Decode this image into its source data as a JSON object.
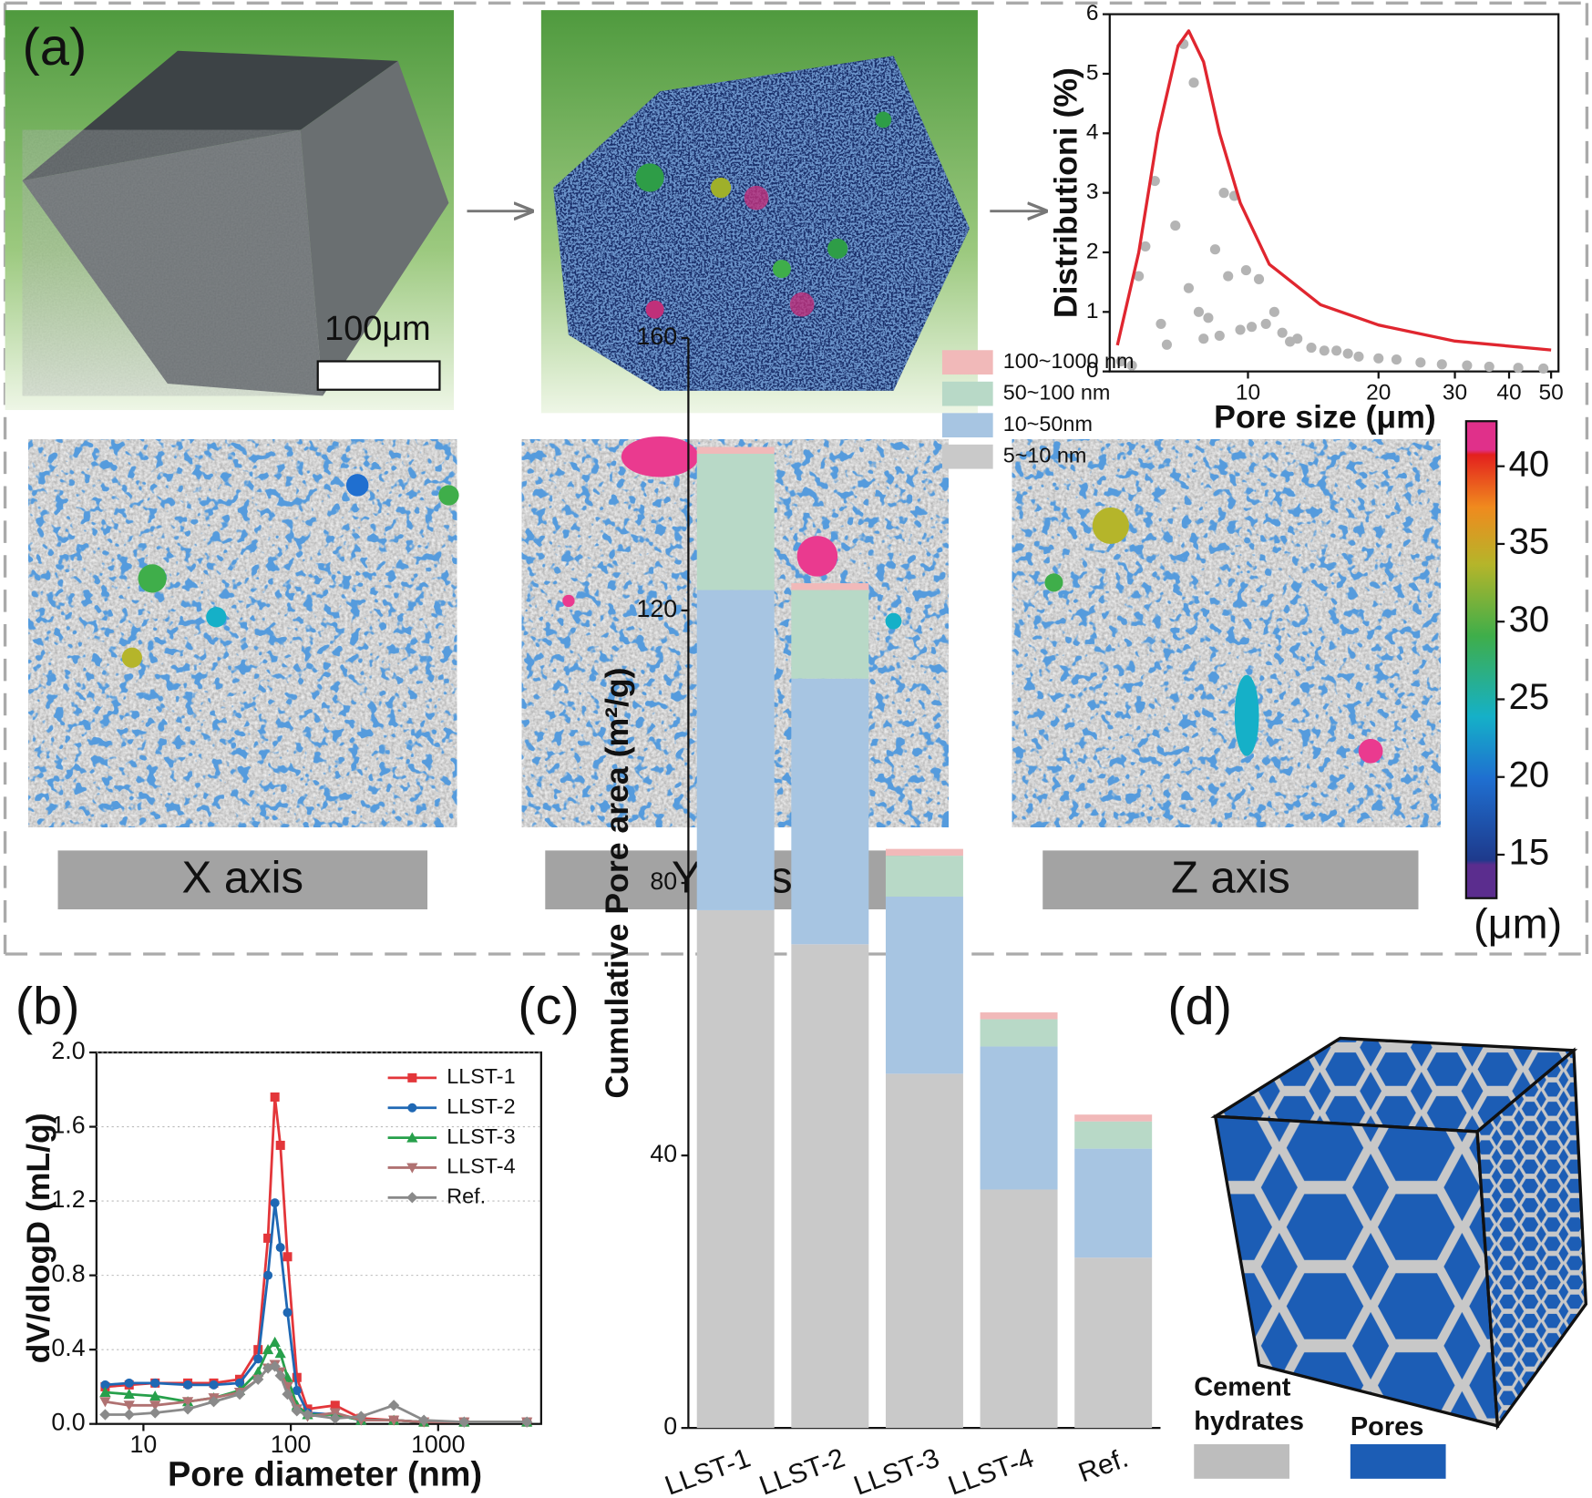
{
  "panels": {
    "a": "(a)",
    "b": "(b)",
    "c": "(c)",
    "d": "(d)"
  },
  "scale_bar": "100μm",
  "slices": [
    "X axis",
    "Y axis",
    "Z axis"
  ],
  "colorbar": {
    "lim": [
      12.2,
      42.9
    ],
    "ticks": [
      15,
      20,
      25,
      30,
      35,
      40
    ],
    "unit": "(μm)"
  },
  "legend_d": {
    "cement": [
      "Cement",
      "hydrates"
    ],
    "pores": "Pores"
  },
  "chart_data": [
    {
      "type": "scatter",
      "x_label": "Pore size (μm)",
      "y_label": "Distributioni (%)",
      "xlog": true,
      "xlim": [
        4.8,
        52
      ],
      "ylim": [
        0,
        6
      ],
      "xticks": [
        10,
        20,
        30,
        40,
        50
      ],
      "yticks": [
        0,
        1,
        2,
        3,
        4,
        5,
        6
      ],
      "line": {
        "color": "#e0262f",
        "x": [
          5.0,
          5.6,
          6.2,
          6.9,
          7.3,
          7.9,
          8.6,
          9.6,
          11.2,
          14.7,
          20,
          30,
          50
        ],
        "values": [
          0.44,
          2.0,
          4.0,
          5.47,
          5.72,
          5.2,
          4.0,
          2.83,
          1.8,
          1.12,
          0.78,
          0.51,
          0.36
        ]
      },
      "points": {
        "color": "#b4b4b4",
        "x": [
          5.1,
          5.4,
          5.6,
          5.8,
          6.1,
          6.3,
          6.5,
          6.8,
          7.1,
          7.3,
          7.5,
          7.7,
          7.9,
          8.1,
          8.4,
          8.6,
          8.8,
          9.0,
          9.3,
          9.6,
          9.9,
          10.2,
          10.6,
          11,
          11.5,
          12,
          12.5,
          13,
          14,
          15,
          16,
          17,
          18,
          20,
          22,
          25,
          28,
          32,
          36,
          42,
          48
        ],
        "values": [
          0.17,
          0.1,
          1.6,
          2.1,
          3.2,
          0.8,
          0.45,
          2.45,
          5.5,
          1.4,
          4.85,
          1.0,
          0.55,
          0.9,
          2.05,
          0.6,
          3.0,
          1.6,
          2.95,
          0.7,
          1.7,
          0.75,
          1.55,
          0.8,
          1.0,
          0.65,
          0.5,
          0.55,
          0.4,
          0.35,
          0.35,
          0.3,
          0.25,
          0.22,
          0.2,
          0.15,
          0.12,
          0.1,
          0.08,
          0.06,
          0.05
        ]
      }
    },
    {
      "type": "line",
      "x_label": "Pore diameter (nm)",
      "y_label": "dV/dlogD (mL/g)",
      "xlog": true,
      "grid": true,
      "legend": "upper right",
      "xlim": [
        4.8,
        5000
      ],
      "ylim": [
        0,
        2.0
      ],
      "xticks": [
        10,
        100,
        1000
      ],
      "yticks": [
        {
          "value": 0,
          "label": "0.0"
        },
        0.4,
        0.8,
        1.2,
        1.6,
        {
          "value": 2,
          "label": "2.0"
        }
      ],
      "x": [
        5.5,
        8,
        12,
        20,
        30,
        45,
        60,
        70,
        78,
        85,
        95,
        110,
        130,
        200,
        300,
        500,
        800,
        1500,
        4000
      ],
      "series": [
        {
          "name": "LLST-1",
          "color": "#e3363a",
          "marker": "square",
          "values": [
            0.2,
            0.21,
            0.22,
            0.22,
            0.22,
            0.24,
            0.4,
            1.0,
            1.76,
            1.5,
            0.9,
            0.25,
            0.08,
            0.1,
            0.03,
            0.02,
            0.01,
            0.01,
            0.01
          ]
        },
        {
          "name": "LLST-2",
          "color": "#1f68b4",
          "marker": "circle",
          "values": [
            0.21,
            0.22,
            0.22,
            0.21,
            0.21,
            0.22,
            0.35,
            0.8,
            1.19,
            0.95,
            0.6,
            0.18,
            0.06,
            0.05,
            0.02,
            0.02,
            0.01,
            0.01,
            0.01
          ]
        },
        {
          "name": "LLST-3",
          "color": "#27a04b",
          "marker": "triangle-up",
          "values": [
            0.17,
            0.16,
            0.15,
            0.12,
            0.14,
            0.18,
            0.28,
            0.4,
            0.44,
            0.38,
            0.25,
            0.1,
            0.05,
            0.05,
            0.02,
            0.02,
            0.01,
            0.01,
            0.01
          ]
        },
        {
          "name": "LLST-4",
          "color": "#b07272",
          "marker": "triangle-down",
          "values": [
            0.12,
            0.1,
            0.1,
            0.12,
            0.14,
            0.17,
            0.24,
            0.3,
            0.32,
            0.28,
            0.2,
            0.08,
            0.04,
            0.06,
            0.02,
            0.02,
            0.01,
            0.01,
            0.01
          ]
        },
        {
          "name": "Ref.",
          "color": "#8a8a8a",
          "marker": "diamond",
          "values": [
            0.05,
            0.05,
            0.06,
            0.08,
            0.12,
            0.16,
            0.24,
            0.3,
            0.31,
            0.26,
            0.16,
            0.07,
            0.05,
            0.03,
            0.04,
            0.1,
            0.02,
            0.01,
            0.01
          ]
        }
      ]
    },
    {
      "type": "bar",
      "stacked": true,
      "y_label": "Cumulative Pore area (m²/g)",
      "legend": "upper right",
      "ylim": [
        0,
        160
      ],
      "yticks": [
        0,
        40,
        80,
        120,
        160
      ],
      "categories": [
        "LLST-1",
        "LLST-2",
        "LLST-3",
        "LLST-4",
        "Ref."
      ],
      "series": [
        {
          "name": "5~10 nm",
          "color": "#c9c9c9",
          "values": [
            76,
            71,
            52,
            35,
            25
          ]
        },
        {
          "name": "10~50nm",
          "color": "#a7c5e2",
          "values": [
            47,
            39,
            26,
            21,
            16
          ]
        },
        {
          "name": "50~100 nm",
          "color": "#b8d9c7",
          "values": [
            20,
            13,
            6,
            4,
            4
          ]
        },
        {
          "name": "100~1000 nm",
          "color": "#f1b9b9",
          "values": [
            1,
            1,
            1,
            1,
            1
          ]
        }
      ]
    }
  ]
}
